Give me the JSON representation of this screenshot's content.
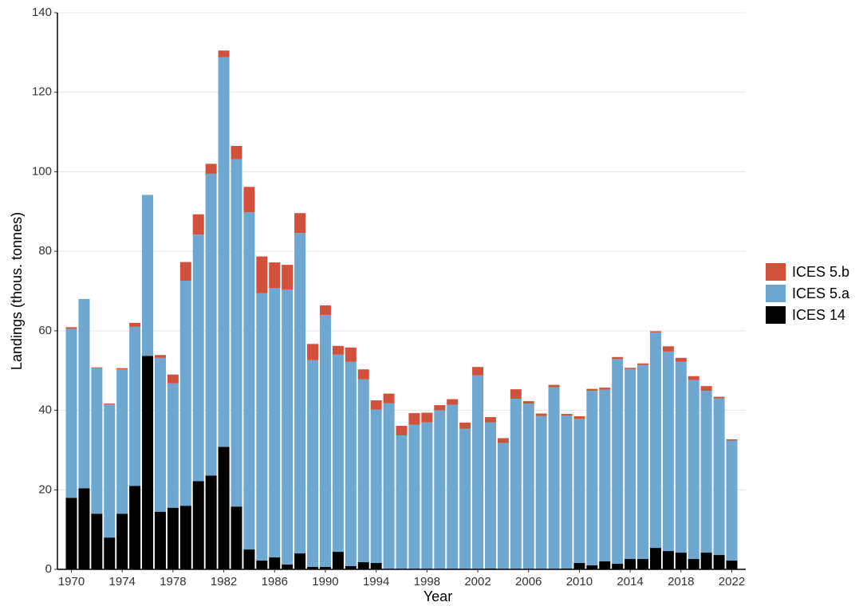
{
  "chart_data": {
    "type": "stacked-bar",
    "x_label": "Year",
    "y_label": "Landings (thous. tonnes)",
    "x": [
      1970,
      1971,
      1972,
      1973,
      1974,
      1975,
      1976,
      1977,
      1978,
      1979,
      1980,
      1981,
      1982,
      1983,
      1984,
      1985,
      1986,
      1987,
      1988,
      1989,
      1990,
      1991,
      1992,
      1993,
      1994,
      1995,
      1996,
      1997,
      1998,
      1999,
      2000,
      2001,
      2002,
      2003,
      2004,
      2005,
      2006,
      2007,
      2008,
      2009,
      2010,
      2011,
      2012,
      2013,
      2014,
      2015,
      2016,
      2017,
      2018,
      2019,
      2020,
      2021,
      2022
    ],
    "series": [
      {
        "name": "ICES 14",
        "color": "#000000",
        "values": [
          18,
          20.4,
          14,
          8,
          14,
          21,
          53.7,
          14.5,
          15.5,
          16,
          22.2,
          23.6,
          30.8,
          15.8,
          5,
          2.2,
          3,
          1.2,
          4,
          0.6,
          0.6,
          4.4,
          0.8,
          1.8,
          1.6,
          0,
          0,
          0,
          0,
          0,
          0,
          0,
          0,
          0.2,
          0,
          0,
          0,
          0,
          0,
          0.2,
          1.6,
          1,
          2,
          1.4,
          2.6,
          2.6,
          5.4,
          4.6,
          4.2,
          2.6,
          4.2,
          3.6,
          2.2
        ]
      },
      {
        "name": "ICES 5.a",
        "color": "#6ea7cf",
        "values": [
          42.5,
          47.6,
          36.6,
          33.5,
          36.3,
          40,
          40.5,
          38.7,
          31.3,
          56.6,
          62,
          75.9,
          98,
          87.4,
          84.8,
          67.3,
          67.8,
          69.2,
          80.6,
          52,
          63.4,
          49.6,
          51.4,
          46,
          38.6,
          41.8,
          33.7,
          36.4,
          37,
          40,
          41.4,
          35.4,
          48.8,
          36.8,
          31.8,
          42.9,
          41.7,
          38.6,
          45.8,
          38.5,
          36.3,
          43.9,
          43.2,
          51.5,
          47.8,
          48.8,
          54.2,
          50.2,
          48,
          45,
          40.7,
          39.4,
          30.2
        ]
      },
      {
        "name": "ICES 5.b",
        "color": "#d2513a",
        "values": [
          0.4,
          0,
          0.2,
          0.2,
          0.3,
          1,
          0,
          0.7,
          2.2,
          4.7,
          5.1,
          2.5,
          1.7,
          3.3,
          6.4,
          9.2,
          6.4,
          6.2,
          5,
          4.1,
          2.4,
          2.2,
          3.6,
          2.5,
          2.3,
          2.4,
          2.4,
          2.9,
          2.4,
          1.3,
          1.4,
          1.5,
          2.1,
          1.3,
          1.2,
          2.4,
          0.6,
          0.6,
          0.6,
          0.4,
          0.6,
          0.5,
          0.5,
          0.5,
          0.3,
          0.4,
          0.3,
          1.3,
          1,
          1,
          1.2,
          0.4,
          0.3
        ]
      }
    ],
    "xlim": [
      1968.9,
      2023.1
    ],
    "xticks": [
      1970,
      1974,
      1978,
      1982,
      1986,
      1990,
      1994,
      1998,
      2002,
      2006,
      2010,
      2014,
      2018,
      2022
    ],
    "ylim": [
      0,
      140
    ],
    "yticks": [
      0,
      20,
      40,
      60,
      80,
      100,
      120,
      140
    ],
    "grid": true,
    "legend": "right"
  }
}
